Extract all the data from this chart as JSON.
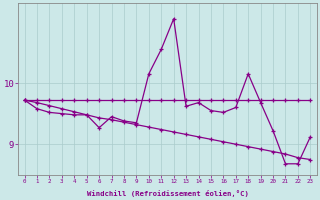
{
  "xlabel": "Windchill (Refroidissement éolien,°C)",
  "bg_color": "#cce8e8",
  "line_color": "#880088",
  "x_values": [
    0,
    1,
    2,
    3,
    4,
    5,
    6,
    7,
    8,
    9,
    10,
    11,
    12,
    13,
    14,
    15,
    16,
    17,
    18,
    19,
    20,
    21,
    22,
    23
  ],
  "y_jagged": [
    9.72,
    9.58,
    9.52,
    9.5,
    9.48,
    9.48,
    9.27,
    9.45,
    9.38,
    9.35,
    10.15,
    10.55,
    11.05,
    9.62,
    9.68,
    9.55,
    9.52,
    9.6,
    10.15,
    9.68,
    9.22,
    8.68,
    8.68,
    9.12
  ],
  "y_horiz": [
    9.72,
    9.72,
    9.72,
    9.72,
    9.72,
    9.72,
    9.72,
    9.72,
    9.72,
    9.72,
    9.72,
    9.72,
    9.72,
    9.72,
    9.72,
    9.72,
    9.72,
    9.72,
    9.72,
    9.72,
    9.72,
    9.72,
    9.72,
    9.72
  ],
  "y_trend": [
    9.72,
    9.68,
    9.63,
    9.58,
    9.53,
    9.48,
    9.43,
    9.4,
    9.36,
    9.32,
    9.28,
    9.24,
    9.2,
    9.16,
    9.12,
    9.08,
    9.04,
    9.0,
    8.96,
    8.92,
    8.88,
    8.84,
    8.78,
    8.75
  ],
  "ylim": [
    8.5,
    11.3
  ],
  "yticks": [
    9,
    10
  ],
  "xlim": [
    -0.5,
    23.5
  ],
  "marker": "+"
}
